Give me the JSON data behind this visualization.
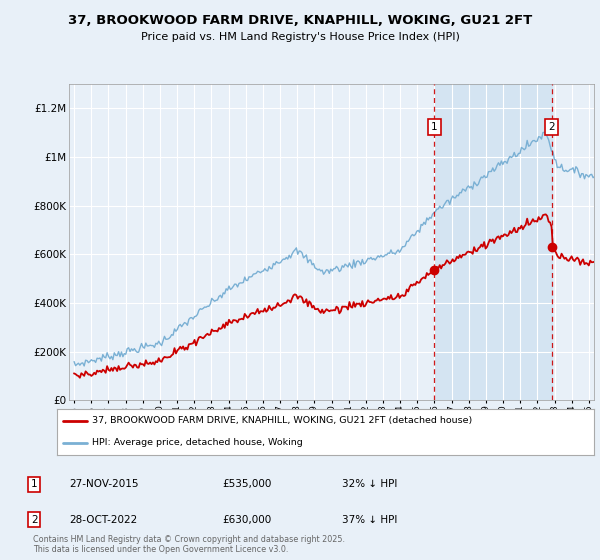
{
  "title": "37, BROOKWOOD FARM DRIVE, KNAPHILL, WOKING, GU21 2FT",
  "subtitle": "Price paid vs. HM Land Registry's House Price Index (HPI)",
  "background_color": "#e8f0f8",
  "plot_bg_color": "#e8f0f8",
  "hpi_color": "#7ab0d4",
  "price_color": "#cc0000",
  "dashed_color": "#cc0000",
  "shade_color": "#ccdff0",
  "ylim": [
    0,
    1300000
  ],
  "yticks": [
    0,
    200000,
    400000,
    600000,
    800000,
    1000000,
    1200000
  ],
  "ytick_labels": [
    "£0",
    "£200K",
    "£400K",
    "£600K",
    "£800K",
    "£1M",
    "£1.2M"
  ],
  "sale1_date": "27-NOV-2015",
  "sale1_price": 535000,
  "sale1_pct": "32% ↓ HPI",
  "sale1_year": 2016.0,
  "sale2_date": "28-OCT-2022",
  "sale2_price": 630000,
  "sale2_pct": "37% ↓ HPI",
  "sale2_year": 2022.83,
  "legend_line1": "37, BROOKWOOD FARM DRIVE, KNAPHILL, WOKING, GU21 2FT (detached house)",
  "legend_line2": "HPI: Average price, detached house, Woking",
  "footer": "Contains HM Land Registry data © Crown copyright and database right 2025.\nThis data is licensed under the Open Government Licence v3.0.",
  "xlim": [
    1994.7,
    2025.3
  ],
  "xticks": [
    1995,
    1996,
    1997,
    1998,
    1999,
    2000,
    2001,
    2002,
    2003,
    2004,
    2005,
    2006,
    2007,
    2008,
    2009,
    2010,
    2011,
    2012,
    2013,
    2014,
    2015,
    2016,
    2017,
    2018,
    2019,
    2020,
    2021,
    2022,
    2023,
    2024,
    2025
  ]
}
